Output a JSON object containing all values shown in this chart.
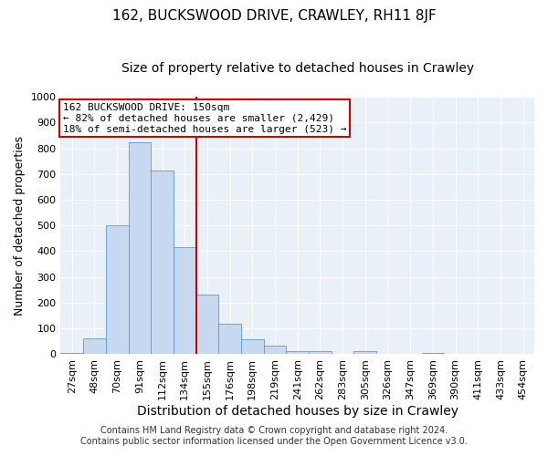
{
  "title": "162, BUCKSWOOD DRIVE, CRAWLEY, RH11 8JF",
  "subtitle": "Size of property relative to detached houses in Crawley",
  "xlabel": "Distribution of detached houses by size in Crawley",
  "ylabel": "Number of detached properties",
  "categories": [
    "27sqm",
    "48sqm",
    "70sqm",
    "91sqm",
    "112sqm",
    "134sqm",
    "155sqm",
    "176sqm",
    "198sqm",
    "219sqm",
    "241sqm",
    "262sqm",
    "283sqm",
    "305sqm",
    "326sqm",
    "347sqm",
    "369sqm",
    "390sqm",
    "411sqm",
    "433sqm",
    "454sqm"
  ],
  "values": [
    5,
    60,
    500,
    825,
    713,
    415,
    230,
    117,
    58,
    33,
    12,
    10,
    0,
    10,
    0,
    0,
    5,
    0,
    0,
    0,
    0
  ],
  "bar_color": "#c6d9f0",
  "bar_edge_color": "#5b9bd5",
  "ylim": [
    0,
    1000
  ],
  "yticks": [
    0,
    100,
    200,
    300,
    400,
    500,
    600,
    700,
    800,
    900,
    1000
  ],
  "annotation_title": "162 BUCKSWOOD DRIVE: 150sqm",
  "annotation_line1": "← 82% of detached houses are smaller (2,429)",
  "annotation_line2": "18% of semi-detached houses are larger (523) →",
  "annotation_box_color": "#ffffff",
  "annotation_box_edge": "#cc0000",
  "vline_color": "#cc0000",
  "vline_x": 5.5,
  "footer1": "Contains HM Land Registry data © Crown copyright and database right 2024.",
  "footer2": "Contains public sector information licensed under the Open Government Licence v3.0.",
  "background_color": "#eaf0f8",
  "title_fontsize": 11,
  "subtitle_fontsize": 10,
  "xlabel_fontsize": 10,
  "ylabel_fontsize": 9,
  "tick_fontsize": 8,
  "annotation_fontsize": 8,
  "footer_fontsize": 7
}
